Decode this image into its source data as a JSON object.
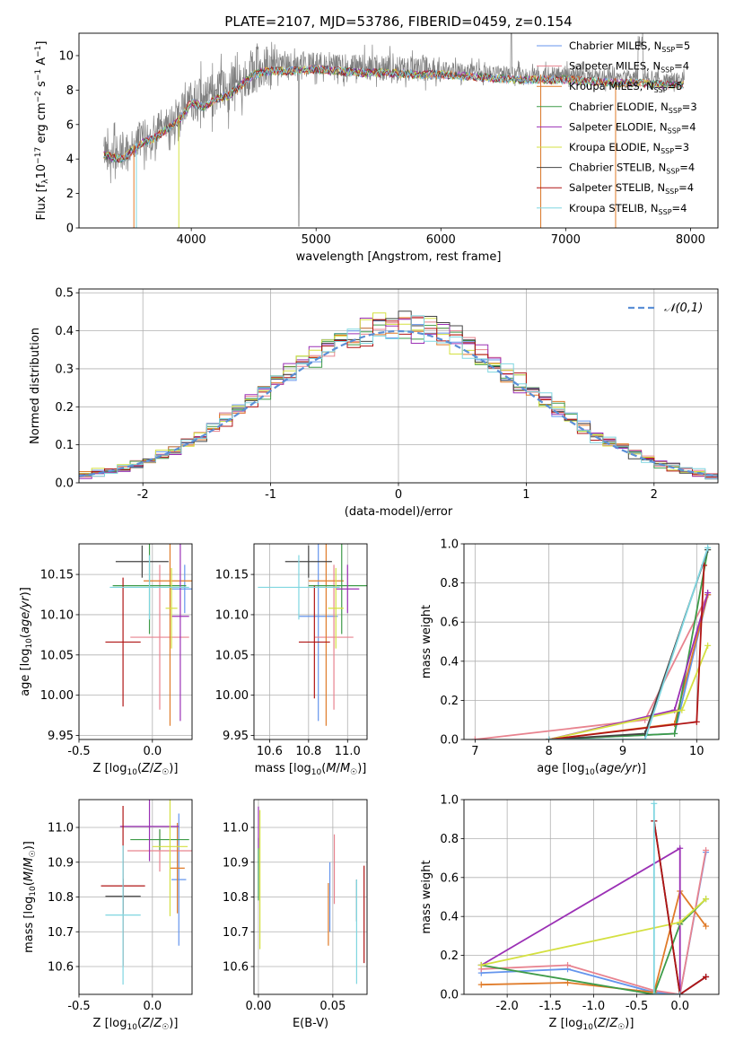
{
  "figure": {
    "title": "PLATE=2107, MJD=53786, FIBERID=0459, z=0.154"
  },
  "colors": [
    "#6495ed",
    "#e8838f",
    "#e07b29",
    "#3e9b48",
    "#9b30b5",
    "#d4e041",
    "#444444",
    "#b01515",
    "#7fd6e0"
  ],
  "chart_data": [
    {
      "id": "spectrum",
      "type": "line",
      "xlabel": "wavelength [Angstrom, rest frame]",
      "ylabel": "Flux [f_λ 10^-17 erg cm^-2 s^-1 A^-1]",
      "xlim": [
        3100,
        8220
      ],
      "ylim": [
        0,
        11.3
      ],
      "xticks": [
        4000,
        5000,
        6000,
        7000,
        8000
      ],
      "yticks": [
        0,
        2,
        4,
        6,
        8,
        10
      ],
      "grid": false,
      "legend_position": "right",
      "data_color": "#808080",
      "continuum": {
        "x": [
          3300,
          3450,
          3600,
          3700,
          3800,
          3900,
          4000,
          4100,
          4200,
          4300,
          4400,
          4500,
          4600,
          4800,
          5000,
          5200,
          5400,
          5600,
          5800,
          6000,
          6200,
          6400,
          6600,
          6800,
          7000,
          7200,
          7400,
          7600,
          7800,
          8000
        ],
        "y": [
          4.5,
          4.3,
          5.2,
          5.5,
          6.0,
          6.5,
          7.6,
          7.3,
          7.8,
          8.0,
          8.6,
          9.2,
          9.4,
          9.4,
          9.5,
          9.4,
          9.3,
          9.3,
          9.2,
          9.2,
          9.1,
          9.0,
          8.9,
          8.9,
          8.9,
          8.8,
          8.7,
          8.7,
          8.6,
          8.6
        ]
      },
      "legend": [
        {
          "label": "Chabrier MILES",
          "n": "5"
        },
        {
          "label": "Salpeter MILES",
          "n": "4"
        },
        {
          "label": "Kroupa MILES",
          "n": "5"
        },
        {
          "label": "Chabrier ELODIE",
          "n": "3"
        },
        {
          "label": "Salpeter ELODIE",
          "n": "4"
        },
        {
          "label": "Kroupa ELODIE",
          "n": "3"
        },
        {
          "label": "Chabrier STELIB",
          "n": "4"
        },
        {
          "label": "Salpeter STELIB",
          "n": "4"
        },
        {
          "label": "Kroupa STELIB",
          "n": "4"
        }
      ]
    },
    {
      "id": "residuals",
      "type": "histogram",
      "xlabel": "(data-model)/error",
      "ylabel": "Normed distribution",
      "xlim": [
        -2.5,
        2.5
      ],
      "ylim": [
        0,
        0.51
      ],
      "xticks": [
        -2,
        -1,
        0,
        1,
        2
      ],
      "yticks": [
        0.0,
        0.1,
        0.2,
        0.3,
        0.4,
        0.5
      ],
      "grid": true,
      "bin_width": 0.1,
      "reference_label": "𝒩(0,1)",
      "reference_color": "#5b8fd6",
      "legend_position": "top-right"
    },
    {
      "id": "age_vs_Z",
      "type": "errorbar",
      "xlabel": "Z [log10(Z/Z☉)]",
      "ylabel": "age [log10(age/yr)]",
      "xlim": [
        -0.5,
        0.27
      ],
      "ylim": [
        9.945,
        10.188
      ],
      "xticks": [
        -0.5,
        0.0
      ],
      "yticks": [
        9.95,
        10.0,
        10.05,
        10.1,
        10.15
      ],
      "grid": true,
      "points": [
        {
          "x": 0.22,
          "y": 10.132,
          "xerr": 0.1,
          "yerr": 0.03
        },
        {
          "x": 0.05,
          "y": 10.072,
          "xerr": 0.2,
          "yerr": 0.09
        },
        {
          "x": 0.12,
          "y": 10.142,
          "xerr": 0.18,
          "yerr": 0.18
        },
        {
          "x": -0.02,
          "y": 10.136,
          "xerr": 0.25,
          "yerr": 0.06
        },
        {
          "x": 0.19,
          "y": 10.098,
          "xerr": 0.06,
          "yerr": 0.13
        },
        {
          "x": 0.13,
          "y": 10.108,
          "xerr": 0.04,
          "yerr": 0.05
        },
        {
          "x": -0.07,
          "y": 10.166,
          "xerr": 0.18,
          "yerr": 0.02
        },
        {
          "x": -0.2,
          "y": 10.066,
          "xerr": 0.12,
          "yerr": 0.08
        },
        {
          "x": -0.02,
          "y": 10.134,
          "xerr": 0.27,
          "yerr": 0.04
        }
      ]
    },
    {
      "id": "age_vs_mass",
      "type": "errorbar",
      "xlabel": "mass [log10(M/M☉)]",
      "ylabel": "",
      "xlim": [
        10.52,
        11.1
      ],
      "ylim": [
        9.945,
        10.188
      ],
      "xticks": [
        10.6,
        10.8,
        11.0
      ],
      "yticks": [
        9.95,
        10.0,
        10.05,
        10.1,
        10.15
      ],
      "grid": true,
      "points": [
        {
          "x": 10.85,
          "y": 10.098,
          "xerr": 0.1,
          "yerr": 0.13
        },
        {
          "x": 10.93,
          "y": 10.072,
          "xerr": 0.1,
          "yerr": 0.09
        },
        {
          "x": 10.89,
          "y": 10.142,
          "xerr": 0.09,
          "yerr": 0.18
        },
        {
          "x": 10.97,
          "y": 10.136,
          "xerr": 0.17,
          "yerr": 0.06
        },
        {
          "x": 11.0,
          "y": 10.132,
          "xerr": 0.06,
          "yerr": 0.03
        },
        {
          "x": 10.94,
          "y": 10.108,
          "xerr": 0.04,
          "yerr": 0.05
        },
        {
          "x": 10.8,
          "y": 10.166,
          "xerr": 0.12,
          "yerr": 0.02
        },
        {
          "x": 10.83,
          "y": 10.066,
          "xerr": 0.08,
          "yerr": 0.07
        },
        {
          "x": 10.75,
          "y": 10.134,
          "xerr": 0.21,
          "yerr": 0.04
        }
      ]
    },
    {
      "id": "weights_vs_age",
      "type": "line",
      "xlabel": "age [log10(age/yr)]",
      "ylabel": "mass weight",
      "xlim": [
        6.85,
        10.3
      ],
      "ylim": [
        0,
        1
      ],
      "xticks": [
        7,
        8,
        9,
        10
      ],
      "yticks": [
        0.0,
        0.2,
        0.4,
        0.6,
        0.8,
        1.0
      ],
      "grid": true,
      "series": [
        {
          "x": [
            8.0,
            9.7,
            10.15
          ],
          "y": [
            0.0,
            0.03,
            0.74
          ]
        },
        {
          "x": [
            7.0,
            9.3,
            10.15
          ],
          "y": [
            0.0,
            0.1,
            0.74
          ]
        },
        {
          "x": [
            8.0,
            9.7,
            10.15
          ],
          "y": [
            0.0,
            0.08,
            0.74
          ]
        },
        {
          "x": [
            8.0,
            9.7,
            10.15
          ],
          "y": [
            0.0,
            0.03,
            0.97
          ]
        },
        {
          "x": [
            8.0,
            9.7,
            10.15
          ],
          "y": [
            0.0,
            0.15,
            0.75
          ]
        },
        {
          "x": [
            8.0,
            9.8,
            10.15
          ],
          "y": [
            0.0,
            0.15,
            0.48
          ]
        },
        {
          "x": [
            8.0,
            9.3,
            10.15
          ],
          "y": [
            0.0,
            0.03,
            0.97
          ]
        },
        {
          "x": [
            8.0,
            10.0,
            10.1
          ],
          "y": [
            0.0,
            0.09,
            0.89
          ]
        },
        {
          "x": [
            8.0,
            9.3,
            10.15
          ],
          "y": [
            0.0,
            0.0,
            0.98
          ]
        }
      ]
    },
    {
      "id": "mass_vs_Z",
      "type": "errorbar",
      "xlabel": "Z [log10(Z/Z☉)]",
      "ylabel": "mass [log10(M/M☉)]",
      "xlim": [
        -0.5,
        0.27
      ],
      "ylim": [
        10.52,
        11.08
      ],
      "xticks": [
        -0.5,
        0.0
      ],
      "yticks": [
        10.6,
        10.7,
        10.8,
        10.9,
        11.0
      ],
      "grid": true,
      "points": [
        {
          "x": 0.18,
          "y": 10.85,
          "xerr": 0.05,
          "yerr": 0.19
        },
        {
          "x": 0.05,
          "y": 10.933,
          "xerr": 0.22,
          "yerr": 0.06
        },
        {
          "x": 0.17,
          "y": 10.883,
          "xerr": 0.05,
          "yerr": 0.13
        },
        {
          "x": 0.05,
          "y": 10.965,
          "xerr": 0.2,
          "yerr": 0.03
        },
        {
          "x": -0.02,
          "y": 11.003,
          "xerr": 0.2,
          "yerr": 0.1
        },
        {
          "x": 0.12,
          "y": 10.945,
          "xerr": 0.12,
          "yerr": 0.2
        },
        {
          "x": -0.2,
          "y": 10.802,
          "xerr": 0.12,
          "yerr": 0.05
        },
        {
          "x": -0.2,
          "y": 10.832,
          "xerr": 0.15,
          "yerr": 0.23
        },
        {
          "x": -0.2,
          "y": 10.748,
          "xerr": 0.12,
          "yerr": 0.2
        }
      ]
    },
    {
      "id": "mass_vs_ebv",
      "type": "errorbar",
      "xlabel": "E(B-V)",
      "ylabel": "",
      "xlim": [
        -0.003,
        0.073
      ],
      "ylim": [
        10.52,
        11.08
      ],
      "xticks": [
        0.0,
        0.05
      ],
      "yticks": [
        10.6,
        10.7,
        10.8,
        10.9,
        11.0
      ],
      "grid": true,
      "points": [
        {
          "x": 0.048,
          "y": 10.8,
          "xerr": 0,
          "yerr": 0.1
        },
        {
          "x": 0.051,
          "y": 10.88,
          "xerr": 0,
          "yerr": 0.1
        },
        {
          "x": 0.047,
          "y": 10.75,
          "xerr": 0,
          "yerr": 0.09
        },
        {
          "x": 0.0,
          "y": 10.88,
          "xerr": 0,
          "yerr": 0.09
        },
        {
          "x": 0.0,
          "y": 11.0,
          "xerr": 0,
          "yerr": 0.06
        },
        {
          "x": 0.001,
          "y": 10.85,
          "xerr": 0,
          "yerr": 0.2
        },
        {
          "x": 0.066,
          "y": 10.79,
          "xerr": 0,
          "yerr": 0.06
        },
        {
          "x": 0.071,
          "y": 10.75,
          "xerr": 0,
          "yerr": 0.14
        },
        {
          "x": 0.066,
          "y": 10.7,
          "xerr": 0,
          "yerr": 0.15
        }
      ]
    },
    {
      "id": "weights_vs_Z",
      "type": "line",
      "xlabel": "Z [log10(Z/Z☉)]",
      "ylabel": "mass weight",
      "xlim": [
        -2.5,
        0.45
      ],
      "ylim": [
        0,
        1
      ],
      "xticks": [
        -2.0,
        -1.5,
        -1.0,
        -0.5,
        0.0
      ],
      "yticks": [
        0.0,
        0.2,
        0.4,
        0.6,
        0.8,
        1.0
      ],
      "grid": true,
      "series": [
        {
          "x": [
            -2.3,
            -1.3,
            -0.3,
            0.0,
            0.3
          ],
          "y": [
            0.11,
            0.13,
            0.01,
            0.0,
            0.73
          ]
        },
        {
          "x": [
            -2.3,
            -1.3,
            -0.3,
            0.0,
            0.3
          ],
          "y": [
            0.13,
            0.15,
            0.02,
            0.0,
            0.74
          ]
        },
        {
          "x": [
            -2.3,
            -1.3,
            -0.3,
            0.0,
            0.3
          ],
          "y": [
            0.05,
            0.06,
            0.01,
            0.53,
            0.35
          ]
        },
        {
          "x": [
            -2.3,
            -0.3,
            0.0,
            0.3
          ],
          "y": [
            0.15,
            0.0,
            0.36,
            0.49
          ]
        },
        {
          "x": [
            -2.3,
            0.0,
            0.0,
            0.3
          ],
          "y": [
            0.15,
            0.75,
            0.0,
            0.09
          ]
        },
        {
          "x": [
            -2.3,
            0.0,
            0.3
          ],
          "y": [
            0.15,
            0.37,
            0.49
          ]
        },
        {
          "x": [
            -0.3,
            0.0,
            0.3
          ],
          "y": [
            0.89,
            0.0,
            0.09
          ]
        },
        {
          "x": [
            -0.3,
            0.0,
            0.3
          ],
          "y": [
            0.89,
            0.0,
            0.09
          ]
        },
        {
          "x": [
            -0.3,
            -0.3,
            0.0
          ],
          "y": [
            0.98,
            0.0,
            0.0
          ]
        }
      ]
    }
  ]
}
